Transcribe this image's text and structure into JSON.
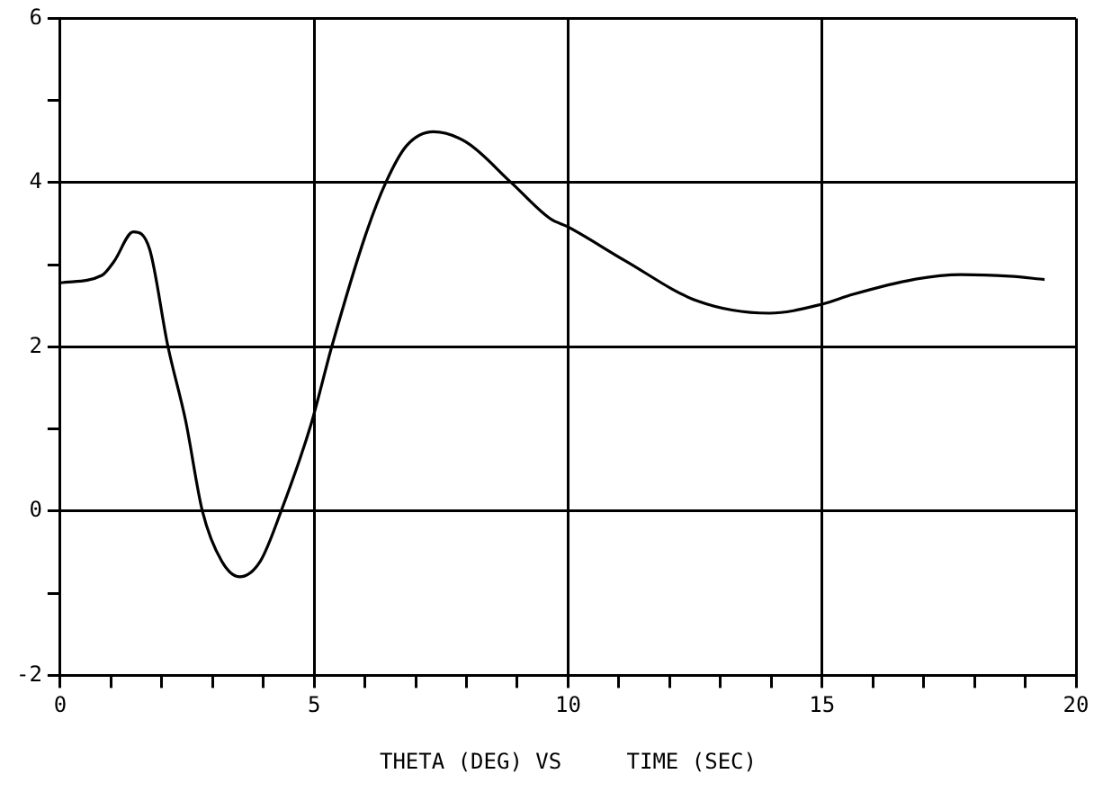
{
  "chart_data": {
    "type": "line",
    "xlabel": "THETA (DEG) VS     TIME (SEC)",
    "x": [
      0,
      0.82,
      1.06,
      1.44,
      1.76,
      2.12,
      2.47,
      2.8,
      3.18,
      3.53,
      3.94,
      4.35,
      4.94,
      5.35,
      6.0,
      6.41,
      6.82,
      7.35,
      8.0,
      8.88,
      9.65,
      10,
      11.12,
      12.54,
      13.96,
      15,
      15.61,
      16.8,
      17.74,
      18.69,
      19.38
    ],
    "series": [
      {
        "color": "#000000",
        "values": [
          2.78,
          2.87,
          3.04,
          3.4,
          3.19,
          2.01,
          1.1,
          0,
          -0.61,
          -0.8,
          -0.61,
          0,
          1.06,
          2.01,
          3.34,
          4.0,
          4.45,
          4.62,
          4.49,
          4.0,
          3.56,
          3.46,
          3.05,
          2.56,
          2.41,
          2.52,
          2.64,
          2.82,
          2.88,
          2.86,
          2.82
        ]
      }
    ],
    "xlim": [
      0,
      20
    ],
    "ylim": [
      -2,
      6
    ],
    "xticks": [
      0,
      {
        "value": 1,
        "label": null
      },
      {
        "value": 2,
        "label": null
      },
      {
        "value": 3,
        "label": null
      },
      {
        "value": 4,
        "label": null
      },
      5,
      {
        "value": 6,
        "label": null
      },
      {
        "value": 7,
        "label": null
      },
      {
        "value": 8,
        "label": null
      },
      {
        "value": 9,
        "label": null
      },
      10,
      {
        "value": 11,
        "label": null
      },
      {
        "value": 12,
        "label": null
      },
      {
        "value": 13,
        "label": null
      },
      {
        "value": 14,
        "label": null
      },
      15,
      {
        "value": 16,
        "label": null
      },
      {
        "value": 17,
        "label": null
      },
      {
        "value": 18,
        "label": null
      },
      {
        "value": 19,
        "label": null
      },
      20
    ],
    "yticks": [
      -2,
      {
        "value": -1,
        "label": null
      },
      0,
      {
        "value": 1,
        "label": null
      },
      2,
      {
        "value": 3,
        "label": null
      },
      4,
      {
        "value": 5,
        "label": null
      },
      6
    ],
    "grid": true,
    "legend": false,
    "marker": "none",
    "line_style": "solid"
  }
}
